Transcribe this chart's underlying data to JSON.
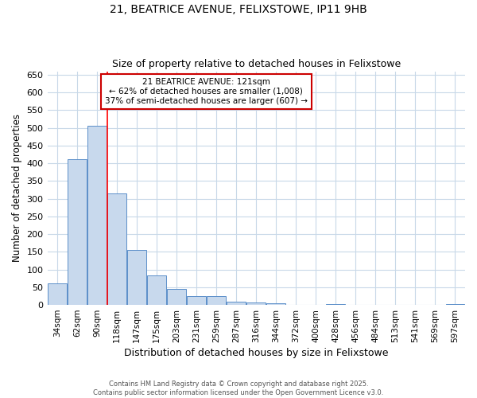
{
  "title1": "21, BEATRICE AVENUE, FELIXSTOWE, IP11 9HB",
  "title2": "Size of property relative to detached houses in Felixstowe",
  "xlabel": "Distribution of detached houses by size in Felixstowe",
  "ylabel": "Number of detached properties",
  "categories": [
    "34sqm",
    "62sqm",
    "90sqm",
    "118sqm",
    "147sqm",
    "175sqm",
    "203sqm",
    "231sqm",
    "259sqm",
    "287sqm",
    "316sqm",
    "344sqm",
    "372sqm",
    "400sqm",
    "428sqm",
    "456sqm",
    "484sqm",
    "513sqm",
    "541sqm",
    "569sqm",
    "597sqm"
  ],
  "values": [
    60,
    412,
    507,
    315,
    155,
    83,
    45,
    25,
    25,
    10,
    8,
    5,
    0,
    0,
    3,
    0,
    0,
    0,
    0,
    0,
    3
  ],
  "bar_color": "#c8d9ed",
  "bar_edge_color": "#5b8fc9",
  "red_line_x": 2.5,
  "annotation_line1": "21 BEATRICE AVENUE: 121sqm",
  "annotation_line2": "← 62% of detached houses are smaller (1,008)",
  "annotation_line3": "37% of semi-detached houses are larger (607) →",
  "annotation_box_color": "#ffffff",
  "annotation_box_edge_color": "#cc0000",
  "ylim": [
    0,
    660
  ],
  "yticks": [
    0,
    50,
    100,
    150,
    200,
    250,
    300,
    350,
    400,
    450,
    500,
    550,
    600,
    650
  ],
  "footer1": "Contains HM Land Registry data © Crown copyright and database right 2025.",
  "footer2": "Contains public sector information licensed under the Open Government Licence v3.0.",
  "bg_color": "#ffffff",
  "grid_color": "#c8d8e8"
}
